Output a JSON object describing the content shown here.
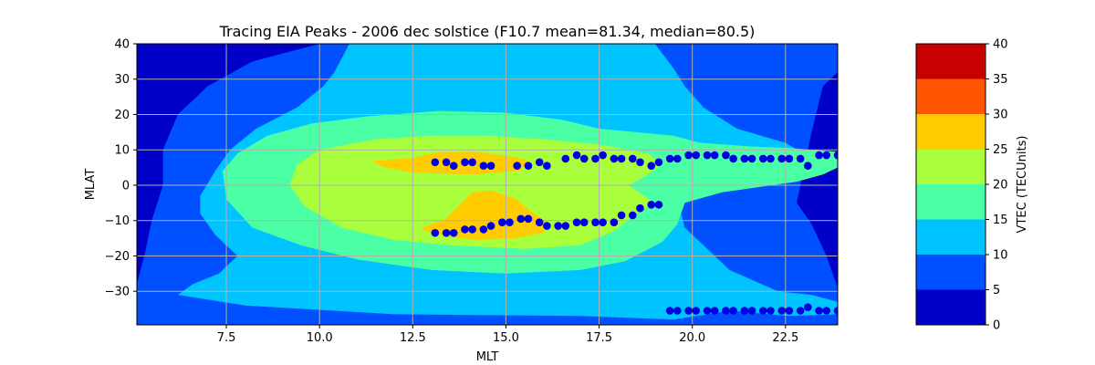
{
  "chart_data": {
    "type": "heatmap",
    "subtype": "filled-contour-with-scatter",
    "title": "Tracing EIA Peaks - 2006 dec solstice (F10.7 mean=81.34, median=80.5)",
    "xlabel": "MLT",
    "ylabel": "MLAT",
    "xlim": [
      5.1,
      23.9
    ],
    "ylim": [
      -39.5,
      40
    ],
    "x_ticks": [
      7.5,
      10.0,
      12.5,
      15.0,
      17.5,
      20.0,
      22.5
    ],
    "x_tick_labels": [
      "7.5",
      "10.0",
      "12.5",
      "15.0",
      "17.5",
      "20.0",
      "22.5"
    ],
    "y_ticks": [
      -30,
      -20,
      -10,
      0,
      10,
      20,
      30,
      40
    ],
    "y_tick_labels": [
      "−30",
      "−20",
      "−10",
      "0",
      "10",
      "20",
      "30",
      "40"
    ],
    "grid": true,
    "colorbar": {
      "label": "VTEC (TECUnits)",
      "levels": [
        0,
        5,
        10,
        15,
        20,
        25,
        30,
        35,
        40
      ],
      "tick_labels": [
        "0",
        "5",
        "10",
        "15",
        "20",
        "25",
        "30",
        "35",
        "40"
      ],
      "colors": [
        "#0000c8",
        "#0050ff",
        "#00c4ff",
        "#4bffa5",
        "#aaff3c",
        "#ffcc00",
        "#ff5500",
        "#c80000"
      ]
    },
    "contour_fills": [
      {
        "level": 5,
        "color": "#0050ff",
        "points": [
          [
            5.1,
            -40
          ],
          [
            23.9,
            -40
          ],
          [
            23.9,
            -29
          ],
          [
            23.6,
            -20
          ],
          [
            23.2,
            -11
          ],
          [
            22.8,
            -5
          ],
          [
            23.0,
            5
          ],
          [
            23.2,
            15
          ],
          [
            23.5,
            28
          ],
          [
            23.9,
            32
          ],
          [
            23.9,
            40
          ],
          [
            10,
            40
          ],
          [
            8.2,
            35
          ],
          [
            7.0,
            28
          ],
          [
            6.2,
            20
          ],
          [
            5.8,
            10
          ],
          [
            5.8,
            0
          ],
          [
            5.5,
            -10
          ],
          [
            5.3,
            -20
          ],
          [
            5.1,
            -28
          ]
        ]
      },
      {
        "level": 10,
        "color": "#00c4ff",
        "points": [
          [
            6.2,
            -31
          ],
          [
            8,
            -34
          ],
          [
            12,
            -36.5
          ],
          [
            17,
            -37
          ],
          [
            19.5,
            -38
          ],
          [
            21,
            -35.5
          ],
          [
            22.6,
            -37
          ],
          [
            23.9,
            -36.5
          ],
          [
            23.9,
            -33
          ],
          [
            23.2,
            -31
          ],
          [
            22.3,
            -30
          ],
          [
            21,
            -24
          ],
          [
            19.8,
            -12
          ],
          [
            19.6,
            -4
          ],
          [
            20.3,
            0
          ],
          [
            21.5,
            3
          ],
          [
            22.8,
            3
          ],
          [
            23.3,
            7
          ],
          [
            22.5,
            12
          ],
          [
            21.2,
            16
          ],
          [
            20.3,
            22
          ],
          [
            19.8,
            28
          ],
          [
            19.5,
            33
          ],
          [
            19,
            40
          ],
          [
            10.8,
            40
          ],
          [
            10.4,
            32
          ],
          [
            10.1,
            28
          ],
          [
            9.4,
            22
          ],
          [
            8.3,
            16
          ],
          [
            7.6,
            10
          ],
          [
            7.2,
            4
          ],
          [
            6.8,
            -3
          ],
          [
            6.8,
            -8
          ],
          [
            7.2,
            -14
          ],
          [
            7.8,
            -20
          ],
          [
            7.3,
            -25
          ],
          [
            6.6,
            -28
          ]
        ]
      },
      {
        "level": 15,
        "color": "#4bffa5",
        "points": [
          [
            7.5,
            -4
          ],
          [
            8.2,
            -12
          ],
          [
            9.5,
            -17
          ],
          [
            11,
            -21
          ],
          [
            13,
            -24
          ],
          [
            15,
            -25
          ],
          [
            17,
            -24
          ],
          [
            18.2,
            -21.5
          ],
          [
            19.2,
            -16
          ],
          [
            19.6,
            -11
          ],
          [
            19.8,
            -5
          ],
          [
            20.8,
            -2
          ],
          [
            22.8,
            1
          ],
          [
            23.5,
            3
          ],
          [
            23.9,
            5
          ],
          [
            23.9,
            9.5
          ],
          [
            22.6,
            10.5
          ],
          [
            21.5,
            11
          ],
          [
            20.2,
            12
          ],
          [
            19.5,
            14
          ],
          [
            17.5,
            16
          ],
          [
            16.5,
            18.5
          ],
          [
            15,
            20.5
          ],
          [
            13.2,
            21
          ],
          [
            11.3,
            19.5
          ],
          [
            9.8,
            17.5
          ],
          [
            8.6,
            14
          ],
          [
            7.8,
            9
          ],
          [
            7.4,
            4
          ]
        ]
      },
      {
        "level": 20,
        "color": "#aaff3c",
        "points": [
          [
            9.2,
            0
          ],
          [
            9.6,
            -6
          ],
          [
            10.6,
            -12
          ],
          [
            12,
            -15.5
          ],
          [
            13.5,
            -17
          ],
          [
            15.5,
            -18
          ],
          [
            17,
            -17
          ],
          [
            17.9,
            -13
          ],
          [
            18.5,
            -8
          ],
          [
            19,
            -5
          ],
          [
            18.7,
            -3
          ],
          [
            18.3,
            0
          ],
          [
            18.8,
            3
          ],
          [
            19.2,
            6
          ],
          [
            18.8,
            9
          ],
          [
            17.5,
            11.5
          ],
          [
            16,
            13
          ],
          [
            14.5,
            14
          ],
          [
            13,
            14
          ],
          [
            11.5,
            13
          ],
          [
            10,
            10
          ],
          [
            9.4,
            6
          ]
        ]
      },
      {
        "level": 25,
        "color": "#ffcc00",
        "points": [
          [
            11.4,
            6.8
          ],
          [
            12.5,
            7.8
          ],
          [
            13.2,
            9.4
          ],
          [
            14.2,
            9.5
          ],
          [
            15.2,
            8.0
          ],
          [
            15.6,
            7.0
          ],
          [
            15.4,
            4.2
          ],
          [
            14.2,
            3.0
          ],
          [
            12.5,
            3.5
          ],
          [
            11.7,
            5.2
          ]
        ]
      },
      {
        "level": 25,
        "color": "#ffcc00",
        "points": [
          [
            12.7,
            -12.5
          ],
          [
            13.4,
            -14.5
          ],
          [
            14.2,
            -15.5
          ],
          [
            15.2,
            -15
          ],
          [
            16.0,
            -13.5
          ],
          [
            16.1,
            -10.5
          ],
          [
            15.7,
            -7.5
          ],
          [
            15.2,
            -3.5
          ],
          [
            14.6,
            -1.5
          ],
          [
            14.1,
            -2
          ],
          [
            13.7,
            -6
          ],
          [
            13.4,
            -9.5
          ],
          [
            12.9,
            -11.5
          ]
        ]
      }
    ],
    "series": [
      {
        "name": "",
        "marker_color": "#0000e0",
        "points": [
          [
            13.1,
            6.5
          ],
          [
            13.4,
            6.5
          ],
          [
            13.6,
            5.5
          ],
          [
            13.9,
            6.5
          ],
          [
            14.1,
            6.5
          ],
          [
            14.4,
            5.5
          ],
          [
            14.6,
            5.5
          ],
          [
            15.3,
            5.5
          ],
          [
            15.6,
            5.5
          ],
          [
            15.9,
            6.5
          ],
          [
            16.1,
            5.5
          ],
          [
            16.6,
            7.5
          ],
          [
            16.9,
            8.5
          ],
          [
            17.1,
            7.5
          ],
          [
            17.4,
            7.5
          ],
          [
            17.6,
            8.5
          ],
          [
            17.9,
            7.5
          ],
          [
            18.1,
            7.5
          ],
          [
            18.4,
            7.5
          ],
          [
            18.6,
            6.5
          ],
          [
            18.9,
            5.5
          ],
          [
            19.1,
            6.5
          ],
          [
            19.4,
            7.5
          ],
          [
            19.6,
            7.5
          ],
          [
            19.9,
            8.5
          ],
          [
            20.1,
            8.5
          ],
          [
            20.4,
            8.5
          ],
          [
            20.6,
            8.5
          ],
          [
            20.9,
            8.5
          ],
          [
            21.1,
            7.5
          ],
          [
            21.4,
            7.5
          ],
          [
            21.6,
            7.5
          ],
          [
            21.9,
            7.5
          ],
          [
            22.1,
            7.5
          ],
          [
            22.4,
            7.5
          ],
          [
            22.6,
            7.5
          ],
          [
            22.9,
            7.5
          ],
          [
            23.1,
            5.5
          ],
          [
            23.4,
            8.5
          ],
          [
            23.6,
            8.5
          ],
          [
            23.9,
            8.5
          ]
        ]
      },
      {
        "name": "",
        "marker_color": "#0000e0",
        "points": [
          [
            13.1,
            -13.5
          ],
          [
            13.4,
            -13.5
          ],
          [
            13.6,
            -13.5
          ],
          [
            13.9,
            -12.5
          ],
          [
            14.1,
            -12.5
          ],
          [
            14.4,
            -12.5
          ],
          [
            14.6,
            -11.5
          ],
          [
            14.9,
            -10.5
          ],
          [
            15.1,
            -10.5
          ],
          [
            15.4,
            -9.5
          ],
          [
            15.6,
            -9.5
          ],
          [
            15.9,
            -10.5
          ],
          [
            16.1,
            -11.5
          ],
          [
            16.4,
            -11.5
          ],
          [
            16.6,
            -11.5
          ],
          [
            16.9,
            -10.5
          ],
          [
            17.1,
            -10.5
          ],
          [
            17.4,
            -10.5
          ],
          [
            17.6,
            -10.5
          ],
          [
            17.9,
            -10.5
          ],
          [
            18.1,
            -8.5
          ],
          [
            18.4,
            -8.5
          ],
          [
            18.6,
            -6.5
          ],
          [
            18.9,
            -5.5
          ],
          [
            19.1,
            -5.5
          ]
        ]
      },
      {
        "name": "",
        "marker_color": "#0000e0",
        "points": [
          [
            19.4,
            -35.5
          ],
          [
            19.6,
            -35.5
          ],
          [
            19.9,
            -35.5
          ],
          [
            20.1,
            -35.5
          ],
          [
            20.4,
            -35.5
          ],
          [
            20.6,
            -35.5
          ],
          [
            20.9,
            -35.5
          ],
          [
            21.1,
            -35.5
          ],
          [
            21.4,
            -35.5
          ],
          [
            21.6,
            -35.5
          ],
          [
            21.9,
            -35.5
          ],
          [
            22.1,
            -35.5
          ],
          [
            22.4,
            -35.5
          ],
          [
            22.6,
            -35.5
          ],
          [
            22.9,
            -35.5
          ],
          [
            23.1,
            -34.5
          ],
          [
            23.4,
            -35.5
          ],
          [
            23.6,
            -35.5
          ],
          [
            23.9,
            -35.5
          ]
        ]
      }
    ]
  }
}
